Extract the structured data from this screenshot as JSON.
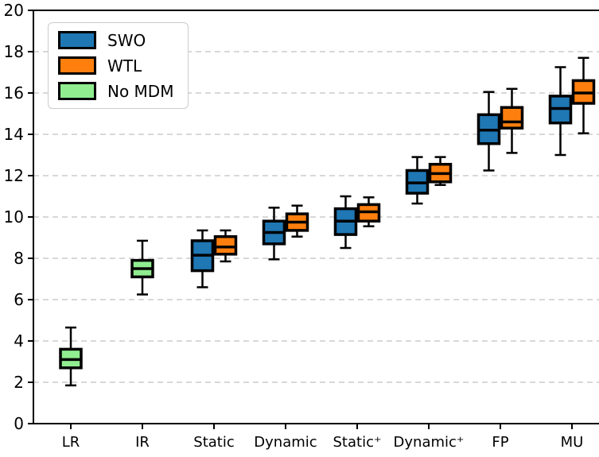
{
  "chart_data": {
    "type": "boxplot",
    "title": "",
    "xlabel": "",
    "ylabel": "",
    "ylim": [
      0,
      20
    ],
    "yticks": [
      0,
      2,
      4,
      6,
      8,
      10,
      12,
      14,
      16,
      18,
      20
    ],
    "grid": {
      "axis": "y",
      "style": "dashed",
      "color": "#cccccc"
    },
    "legend": {
      "position": "upper left",
      "entries": [
        {
          "label": "SWO",
          "color": "#1f77b4"
        },
        {
          "label": "WTL",
          "color": "#ff7f0e"
        },
        {
          "label": "No MDM",
          "color": "#90ee90"
        }
      ]
    },
    "colors": {
      "SWO": "#1f77b4",
      "WTL": "#ff7f0e",
      "No MDM": "#90ee90",
      "box_edge": "#000000",
      "median": "#000000",
      "whisker": "#000000",
      "axis": "#000000",
      "grid": "#cccccc",
      "background": "#ffffff"
    },
    "categories": [
      "LR",
      "IR",
      "Static",
      "Dynamic",
      "Static⁺",
      "Dynamic⁺",
      "FP",
      "MU"
    ],
    "groups": [
      {
        "category": "LR",
        "boxes": [
          {
            "series": "No MDM",
            "whislo": 1.85,
            "q1": 2.7,
            "med": 3.1,
            "q3": 3.6,
            "whishi": 4.65
          }
        ]
      },
      {
        "category": "IR",
        "boxes": [
          {
            "series": "No MDM",
            "whislo": 6.25,
            "q1": 7.1,
            "med": 7.5,
            "q3": 7.9,
            "whishi": 8.85
          }
        ]
      },
      {
        "category": "Static",
        "boxes": [
          {
            "series": "SWO",
            "whislo": 6.6,
            "q1": 7.4,
            "med": 8.15,
            "q3": 8.85,
            "whishi": 9.35
          },
          {
            "series": "WTL",
            "whislo": 7.85,
            "q1": 8.2,
            "med": 8.55,
            "q3": 9.05,
            "whishi": 9.35
          }
        ]
      },
      {
        "category": "Dynamic",
        "boxes": [
          {
            "series": "SWO",
            "whislo": 7.95,
            "q1": 8.7,
            "med": 9.25,
            "q3": 9.8,
            "whishi": 10.45
          },
          {
            "series": "WTL",
            "whislo": 9.05,
            "q1": 9.35,
            "med": 9.75,
            "q3": 10.15,
            "whishi": 10.55
          }
        ]
      },
      {
        "category": "Static⁺",
        "boxes": [
          {
            "series": "SWO",
            "whislo": 8.5,
            "q1": 9.15,
            "med": 9.8,
            "q3": 10.4,
            "whishi": 11.0
          },
          {
            "series": "WTL",
            "whislo": 9.55,
            "q1": 9.8,
            "med": 10.25,
            "q3": 10.6,
            "whishi": 10.95
          }
        ]
      },
      {
        "category": "Dynamic⁺",
        "boxes": [
          {
            "series": "SWO",
            "whislo": 10.65,
            "q1": 11.15,
            "med": 11.65,
            "q3": 12.25,
            "whishi": 12.9
          },
          {
            "series": "WTL",
            "whislo": 11.55,
            "q1": 11.7,
            "med": 12.1,
            "q3": 12.55,
            "whishi": 12.9
          }
        ]
      },
      {
        "category": "FP",
        "boxes": [
          {
            "series": "SWO",
            "whislo": 12.25,
            "q1": 13.55,
            "med": 14.2,
            "q3": 14.95,
            "whishi": 16.05
          },
          {
            "series": "WTL",
            "whislo": 13.1,
            "q1": 14.3,
            "med": 14.6,
            "q3": 15.3,
            "whishi": 16.2
          }
        ]
      },
      {
        "category": "MU",
        "boxes": [
          {
            "series": "SWO",
            "whislo": 13.0,
            "q1": 14.55,
            "med": 15.25,
            "q3": 15.85,
            "whishi": 17.25
          },
          {
            "series": "WTL",
            "whislo": 14.05,
            "q1": 15.5,
            "med": 16.0,
            "q3": 16.6,
            "whishi": 17.7
          }
        ]
      }
    ]
  }
}
